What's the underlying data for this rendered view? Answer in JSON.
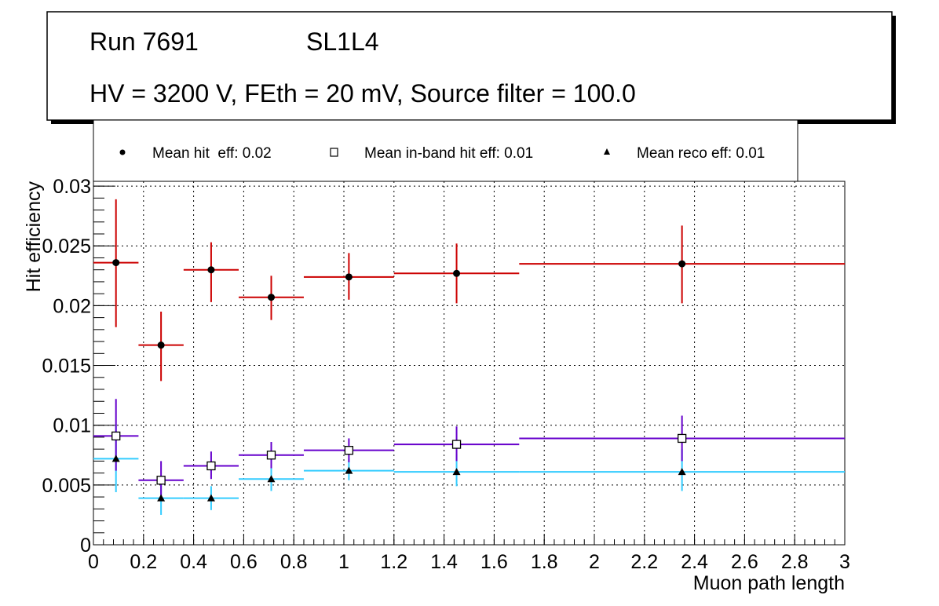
{
  "title_box": {
    "run": "Run 7691",
    "layer": "SL1L4",
    "conditions": "HV = 3200 V, FEth = 20 mV, Source filter = 100.0"
  },
  "colors": {
    "hit": "#cc0000",
    "inband": "#6600cc",
    "reco": "#33ccff"
  },
  "chart_data": {
    "type": "scatter",
    "xlabel": "Muon path length",
    "ylabel": "Hit efficiency",
    "xlim": [
      0,
      3
    ],
    "ylim": [
      0,
      0.0304
    ],
    "grid": true,
    "legend_placement": "top",
    "xticks": [
      "0",
      "0.2",
      "0.4",
      "0.6",
      "0.8",
      "1",
      "1.2",
      "1.4",
      "1.6",
      "1.8",
      "2",
      "2.2",
      "2.4",
      "2.6",
      "2.8",
      "3"
    ],
    "yticks": [
      "0",
      "0.005",
      "0.01",
      "0.015",
      "0.02",
      "0.025",
      "0.03"
    ],
    "bins": [
      [
        0,
        0.18
      ],
      [
        0.18,
        0.36
      ],
      [
        0.36,
        0.58
      ],
      [
        0.58,
        0.84
      ],
      [
        0.84,
        1.2
      ],
      [
        1.2,
        1.7
      ],
      [
        1.7,
        3.0
      ]
    ],
    "x": [
      0.09,
      0.27,
      0.47,
      0.71,
      1.02,
      1.45,
      2.35
    ],
    "series": [
      {
        "name": "Mean hit  eff: 0.02",
        "marker": "circle",
        "color_key": "hit",
        "values": [
          0.0236,
          0.0167,
          0.023,
          0.0207,
          0.0224,
          0.0227,
          0.0235
        ],
        "err_hi": [
          0.0289,
          0.0195,
          0.0253,
          0.0225,
          0.0244,
          0.0252,
          0.0267
        ],
        "err_lo": [
          0.0182,
          0.0137,
          0.0203,
          0.0188,
          0.0205,
          0.0202,
          0.0202
        ]
      },
      {
        "name": "Mean in-band hit eff: 0.01",
        "marker": "open-square",
        "color_key": "inband",
        "values": [
          0.0091,
          0.0054,
          0.0066,
          0.0075,
          0.0079,
          0.0084,
          0.0089
        ],
        "err_hi": [
          0.0122,
          0.007,
          0.0078,
          0.0086,
          0.0089,
          0.0099,
          0.0108
        ],
        "err_lo": [
          0.0062,
          0.0039,
          0.0055,
          0.0064,
          0.0069,
          0.007,
          0.007
        ]
      },
      {
        "name": "Mean reco eff: 0.01",
        "marker": "triangle",
        "color_key": "reco",
        "values": [
          0.0072,
          0.0039,
          0.0039,
          0.0055,
          0.0062,
          0.0061,
          0.0061
        ],
        "err_hi": [
          0.0101,
          0.0053,
          0.0049,
          0.0064,
          0.0072,
          0.0076,
          0.008
        ],
        "err_lo": [
          0.0044,
          0.0025,
          0.0029,
          0.0045,
          0.0054,
          0.0049,
          0.0045
        ]
      }
    ]
  }
}
